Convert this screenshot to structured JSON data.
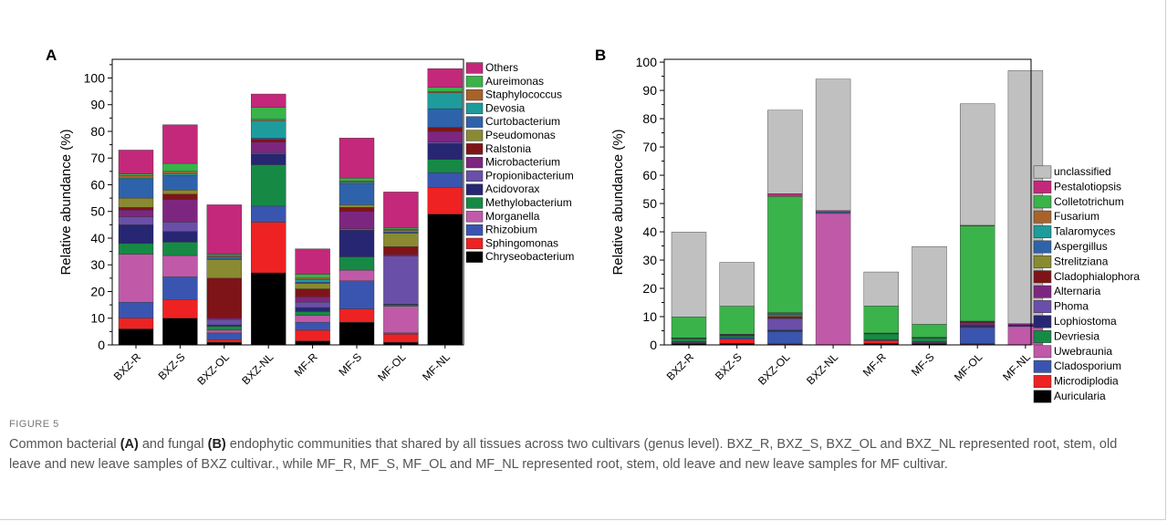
{
  "figure": {
    "label": "FIGURE 5",
    "caption_parts": [
      "Common bacterial ",
      "(A)",
      " and fungal ",
      "(B)",
      " endophytic communities that shared by all tissues across two cultivars (genus level). BXZ_R, BXZ_S, BXZ_OL and BXZ_NL represented root, stem, old leave and new leave samples of BXZ cultivar., while MF_R, MF_S, MF_OL and MF_NL represented root, stem, old leave and new leave samples for MF cultivar."
    ]
  },
  "chart_data": [
    {
      "panel": "A",
      "type": "bar",
      "stacked": true,
      "ylabel": "Relative abundance (%)",
      "xlabel": "",
      "ylim": [
        0,
        107
      ],
      "yticks": [
        0,
        10,
        20,
        30,
        40,
        50,
        60,
        70,
        80,
        90,
        100
      ],
      "grid": false,
      "legend_position": "right",
      "categories": [
        "BXZ-R",
        "BXZ-S",
        "BXZ-OL",
        "BXZ-NL",
        "MF-R",
        "MF-S",
        "MF-OL",
        "MF-NL"
      ],
      "series": [
        {
          "name": "Chryseobacterium",
          "color": "#000000",
          "values": [
            6,
            10,
            1,
            27,
            1.5,
            8.5,
            1,
            49
          ]
        },
        {
          "name": "Sphingomonas",
          "color": "#ee2222",
          "values": [
            4,
            7,
            1,
            19,
            4,
            5,
            3,
            10
          ]
        },
        {
          "name": "Rhizobium",
          "color": "#3a55b0",
          "values": [
            6,
            8.5,
            2.5,
            6,
            3,
            10.5,
            0.5,
            5.5
          ]
        },
        {
          "name": "Morganella",
          "color": "#c05aa8",
          "values": [
            18,
            8,
            1,
            0,
            2.5,
            4,
            10,
            0
          ]
        },
        {
          "name": "Methylobacterium",
          "color": "#168a45",
          "values": [
            4,
            5,
            1.5,
            15.5,
            1.5,
            5,
            0.5,
            5
          ]
        },
        {
          "name": "Acidovorax",
          "color": "#262673",
          "values": [
            7,
            4,
            0.5,
            4,
            1.5,
            10,
            0.3,
            6
          ]
        },
        {
          "name": "Propionibacterium",
          "color": "#6a4fa8",
          "values": [
            3,
            3.5,
            2,
            0.5,
            2,
            0.5,
            18,
            0.5
          ]
        },
        {
          "name": "Microbacterium",
          "color": "#7d2680",
          "values": [
            2.5,
            8.5,
            0.5,
            4,
            2,
            6.5,
            0.5,
            4
          ]
        },
        {
          "name": "Ralstonia",
          "color": "#7f1418",
          "values": [
            1,
            2,
            15,
            1,
            3,
            1.5,
            3,
            1.5
          ]
        },
        {
          "name": "Pseudomonas",
          "color": "#8a8a32",
          "values": [
            3.5,
            1.5,
            7,
            0,
            2,
            1,
            5,
            0
          ]
        },
        {
          "name": "Curtobacterium",
          "color": "#2e63ab",
          "values": [
            7,
            5.5,
            0.5,
            0.5,
            0.5,
            8,
            0.5,
            7
          ]
        },
        {
          "name": "Devosia",
          "color": "#1e9c9c",
          "values": [
            0.5,
            0.5,
            0.5,
            6.5,
            1,
            0.5,
            0.5,
            6
          ]
        },
        {
          "name": "Staphylococcus",
          "color": "#a8632a",
          "values": [
            1,
            1,
            0.5,
            0.5,
            0.5,
            0.5,
            0.5,
            0.5
          ]
        },
        {
          "name": "Aureimonas",
          "color": "#3ab34a",
          "values": [
            0.5,
            3,
            0.5,
            4.5,
            1.5,
            1,
            0.5,
            1.5
          ]
        },
        {
          "name": "Others",
          "color": "#c4287a",
          "values": [
            9,
            14.5,
            18.5,
            5,
            9.5,
            15,
            13.5,
            7
          ]
        }
      ]
    },
    {
      "panel": "B",
      "type": "bar",
      "stacked": true,
      "ylabel": "Relative abundance (%)",
      "xlabel": "",
      "ylim": [
        0,
        101
      ],
      "yticks": [
        0,
        10,
        20,
        30,
        40,
        50,
        60,
        70,
        80,
        90,
        100
      ],
      "grid": false,
      "legend_position": "right",
      "categories": [
        "BXZ-R",
        "BXZ-S",
        "BXZ-OL",
        "BXZ-NL",
        "MF-R",
        "MF-S",
        "MF-OL",
        "MF-NL"
      ],
      "series": [
        {
          "name": "Auricularia",
          "color": "#000000",
          "values": [
            0.5,
            0.5,
            0.3,
            0,
            0.5,
            0.5,
            0.3,
            0
          ]
        },
        {
          "name": "Microdiplodia",
          "color": "#ee2222",
          "values": [
            0.3,
            1.5,
            0.3,
            0,
            1,
            0.3,
            0.2,
            0
          ]
        },
        {
          "name": "Cladosporium",
          "color": "#3a55b0",
          "values": [
            0.3,
            0.5,
            4,
            0,
            0.3,
            0.3,
            5.5,
            0
          ]
        },
        {
          "name": "Uwebraunia",
          "color": "#c05aa8",
          "values": [
            0.1,
            0.1,
            0.2,
            46.5,
            0.1,
            0.1,
            0.2,
            6.5
          ]
        },
        {
          "name": "Devriesia",
          "color": "#168a45",
          "values": [
            1,
            0.6,
            0.2,
            0,
            2,
            1.2,
            0.2,
            0
          ]
        },
        {
          "name": "Lophiostoma",
          "color": "#262673",
          "values": [
            0.1,
            0.2,
            0.3,
            0,
            0.1,
            0.1,
            0.5,
            0.5
          ]
        },
        {
          "name": "Phoma",
          "color": "#6a4fa8",
          "values": [
            0,
            0.1,
            4,
            0,
            0,
            0,
            0.2,
            0
          ]
        },
        {
          "name": "Alternaria",
          "color": "#7d2680",
          "values": [
            0.1,
            0.2,
            0.2,
            0,
            0.1,
            0.1,
            0.8,
            0.5
          ]
        },
        {
          "name": "Cladophialophora",
          "color": "#7f1418",
          "values": [
            0.1,
            0.1,
            0.6,
            0,
            0.1,
            0.1,
            0.5,
            0
          ]
        },
        {
          "name": "Strelitziana",
          "color": "#8a8a32",
          "values": [
            0,
            0,
            0.5,
            0,
            0,
            0,
            0,
            0
          ]
        },
        {
          "name": "Aspergillus",
          "color": "#2e63ab",
          "values": [
            0,
            0,
            0.2,
            0.5,
            0,
            0,
            0,
            0
          ]
        },
        {
          "name": "Talaromyces",
          "color": "#1e9c9c",
          "values": [
            0,
            0,
            0.3,
            0,
            0,
            0,
            0,
            0
          ]
        },
        {
          "name": "Fusarium",
          "color": "#a8632a",
          "values": [
            0,
            0,
            0.3,
            0,
            0,
            0,
            0,
            0
          ]
        },
        {
          "name": "Colletotrichum",
          "color": "#3ab34a",
          "values": [
            7.4,
            9.9,
            41.1,
            0,
            9.6,
            4.6,
            33.7,
            0
          ]
        },
        {
          "name": "Pestalotiopsis",
          "color": "#c4287a",
          "values": [
            0,
            0,
            1,
            0.5,
            0,
            0,
            0.2,
            0
          ]
        },
        {
          "name": "unclassified",
          "color": "#c0c0c0",
          "values": [
            30,
            15.5,
            29.5,
            46.5,
            12,
            27.5,
            43,
            89.5
          ]
        }
      ]
    }
  ]
}
